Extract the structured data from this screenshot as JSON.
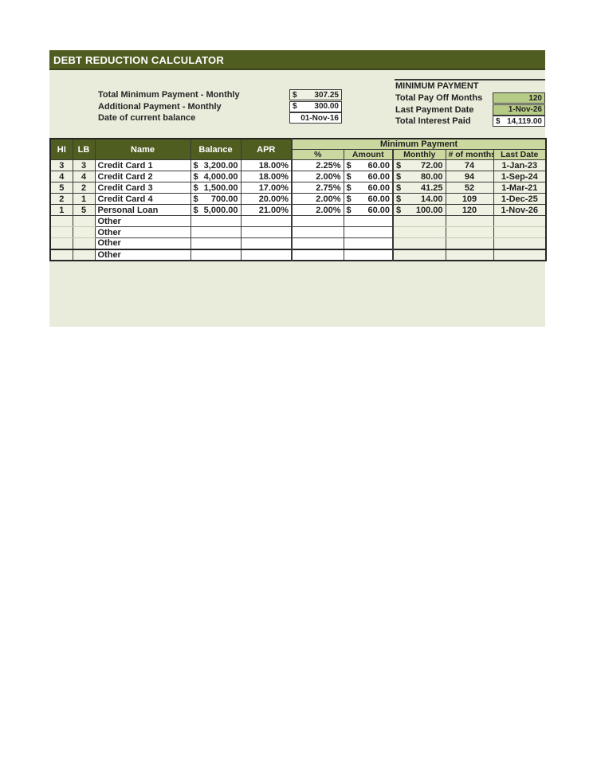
{
  "title": "DEBT REDUCTION CALCULATOR",
  "colors": {
    "header_green": "#4f5d20",
    "panel_bg": "#e9ecdb",
    "light_cell_bg": "#eff1e3",
    "group_header_green": "#cbd9a0",
    "result_cell_green": "#b6cb85",
    "border_dark": "#3a3a3a"
  },
  "summary": {
    "inputs": [
      {
        "label": "Total Minimum Payment - Monthly",
        "prefix": "$",
        "value": "307.25"
      },
      {
        "label": "Additional Payment - Monthly",
        "prefix": "$",
        "value": "300.00"
      },
      {
        "label": "Date of current balance",
        "prefix": "",
        "value": "01-Nov-16"
      }
    ],
    "minimum_payment": {
      "heading": "MINIMUM PAYMENT",
      "rows": [
        {
          "label": "Total Pay Off Months",
          "prefix": "",
          "value": "120"
        },
        {
          "label": "Last Payment Date",
          "prefix": "",
          "value": "1-Nov-26"
        },
        {
          "label": "Total Interest Paid",
          "prefix": "$",
          "value": "14,119.00"
        }
      ]
    }
  },
  "table": {
    "headers": {
      "hi": "HI",
      "lb": "LB",
      "name": "Name",
      "balance": "Balance",
      "apr": "APR",
      "group": "Minimum Payment",
      "pct": "%",
      "amount": "Amount",
      "monthly": "Monthly",
      "months": "# of months",
      "last_date": "Last Date"
    },
    "rows": [
      {
        "hi": "3",
        "lb": "3",
        "name": "Credit Card 1",
        "balance_prefix": "$",
        "balance": "3,200.00",
        "apr": "18.00%",
        "pct": "2.25%",
        "amount_prefix": "$",
        "amount": "60.00",
        "monthly_prefix": "$",
        "monthly": "72.00",
        "months": "74",
        "last_date": "1-Jan-23",
        "placeholder": false
      },
      {
        "hi": "4",
        "lb": "4",
        "name": "Credit Card 2",
        "balance_prefix": "$",
        "balance": "4,000.00",
        "apr": "18.00%",
        "pct": "2.00%",
        "amount_prefix": "$",
        "amount": "60.00",
        "monthly_prefix": "$",
        "monthly": "80.00",
        "months": "94",
        "last_date": "1-Sep-24",
        "placeholder": false
      },
      {
        "hi": "5",
        "lb": "2",
        "name": "Credit Card 3",
        "balance_prefix": "$",
        "balance": "1,500.00",
        "apr": "17.00%",
        "pct": "2.75%",
        "amount_prefix": "$",
        "amount": "60.00",
        "monthly_prefix": "$",
        "monthly": "41.25",
        "months": "52",
        "last_date": "1-Mar-21",
        "placeholder": false
      },
      {
        "hi": "2",
        "lb": "1",
        "name": "Credit Card 4",
        "balance_prefix": "$",
        "balance": "700.00",
        "apr": "20.00%",
        "pct": "2.00%",
        "amount_prefix": "$",
        "amount": "60.00",
        "monthly_prefix": "$",
        "monthly": "14.00",
        "months": "109",
        "last_date": "1-Dec-25",
        "placeholder": false
      },
      {
        "hi": "1",
        "lb": "5",
        "name": "Personal Loan",
        "balance_prefix": "$",
        "balance": "5,000.00",
        "apr": "21.00%",
        "pct": "2.00%",
        "amount_prefix": "$",
        "amount": "60.00",
        "monthly_prefix": "$",
        "monthly": "100.00",
        "months": "120",
        "last_date": "1-Nov-26",
        "placeholder": false
      },
      {
        "hi": "",
        "lb": "",
        "name": "Other",
        "balance_prefix": "",
        "balance": "",
        "apr": "",
        "pct": "",
        "amount_prefix": "",
        "amount": "",
        "monthly_prefix": "",
        "monthly": "",
        "months": "",
        "last_date": "",
        "placeholder": true
      },
      {
        "hi": "",
        "lb": "",
        "name": "Other",
        "balance_prefix": "",
        "balance": "",
        "apr": "",
        "pct": "",
        "amount_prefix": "",
        "amount": "",
        "monthly_prefix": "",
        "monthly": "",
        "months": "",
        "last_date": "",
        "placeholder": true
      },
      {
        "hi": "",
        "lb": "",
        "name": "Other",
        "balance_prefix": "",
        "balance": "",
        "apr": "",
        "pct": "",
        "amount_prefix": "",
        "amount": "",
        "monthly_prefix": "",
        "monthly": "",
        "months": "",
        "last_date": "",
        "placeholder": true
      },
      {
        "hi": "",
        "lb": "",
        "name": "Other",
        "balance_prefix": "",
        "balance": "",
        "apr": "",
        "pct": "",
        "amount_prefix": "",
        "amount": "",
        "monthly_prefix": "",
        "monthly": "",
        "months": "",
        "last_date": "",
        "placeholder": true
      }
    ]
  }
}
